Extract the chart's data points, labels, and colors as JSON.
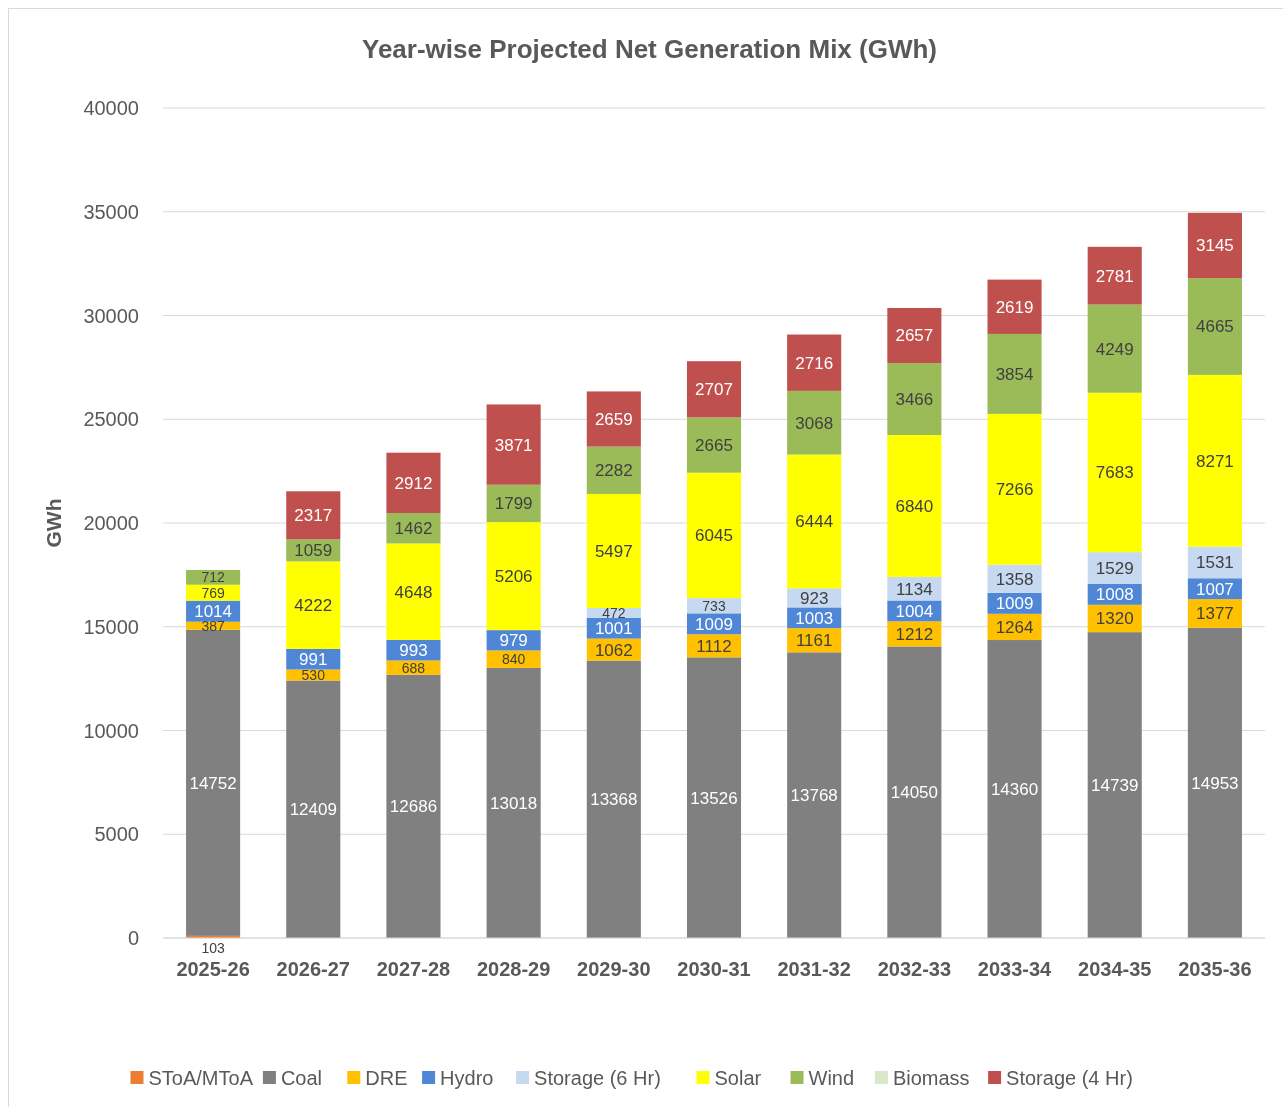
{
  "chart_data": {
    "type": "bar",
    "title": "Year-wise Projected Net Generation Mix (GWh)",
    "ylabel": "GWh",
    "stacked": true,
    "data_labels": true,
    "grid": "y",
    "legend": "bottom",
    "categories": [
      "2025-26",
      "2026-27",
      "2027-28",
      "2028-29",
      "2029-30",
      "2030-31",
      "2031-32",
      "2032-33",
      "2033-34",
      "2034-35",
      "2035-36"
    ],
    "ylim": [
      0,
      40000
    ],
    "yticks": [
      0,
      5000,
      10000,
      15000,
      20000,
      25000,
      30000,
      35000,
      40000
    ],
    "series": [
      {
        "name": "SToA/MToA",
        "color": "#ed7d31",
        "values": [
          103,
          null,
          null,
          null,
          null,
          null,
          null,
          null,
          null,
          null,
          null
        ]
      },
      {
        "name": "Coal",
        "color": "#808080",
        "values": [
          14752,
          12409,
          12686,
          13018,
          13368,
          13526,
          13768,
          14050,
          14360,
          14739,
          14953
        ]
      },
      {
        "name": "DRE",
        "color": "#ffc000",
        "values": [
          387,
          530,
          688,
          840,
          1062,
          1112,
          1161,
          1212,
          1264,
          1320,
          1377
        ]
      },
      {
        "name": "Hydro",
        "color": "#4f86d6",
        "values": [
          1014,
          991,
          993,
          979,
          1001,
          1009,
          1003,
          1004,
          1009,
          1008,
          1007
        ]
      },
      {
        "name": "Storage (6 Hr)",
        "color": "#c6d9f1",
        "values": [
          null,
          null,
          null,
          null,
          472,
          733,
          923,
          1134,
          1358,
          1529,
          1531
        ]
      },
      {
        "name": "Solar",
        "color": "#ffff00",
        "values": [
          769,
          4222,
          4648,
          5206,
          5497,
          6045,
          6444,
          6840,
          7266,
          7683,
          8271
        ]
      },
      {
        "name": "Wind",
        "color": "#9bbb59",
        "values": [
          712,
          1059,
          1462,
          1799,
          2282,
          2665,
          3068,
          3466,
          3854,
          4249,
          4665
        ]
      },
      {
        "name": "Biomass",
        "color": "#d8e8c8",
        "values": [
          null,
          null,
          null,
          null,
          null,
          null,
          null,
          null,
          null,
          null,
          null
        ]
      },
      {
        "name": "Storage (4 Hr)",
        "color": "#c0504d",
        "values": [
          null,
          2317,
          2912,
          3871,
          2659,
          2707,
          2716,
          2657,
          2619,
          2781,
          3145
        ]
      }
    ]
  }
}
